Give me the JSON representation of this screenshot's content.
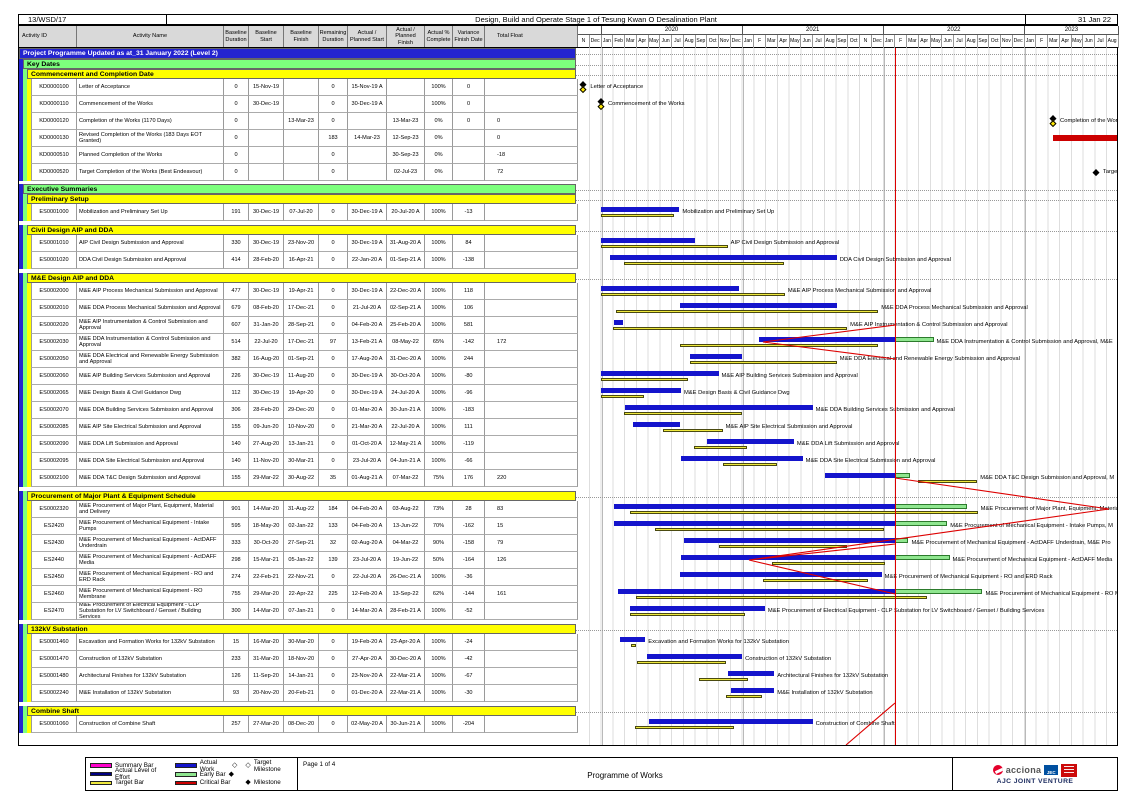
{
  "header": {
    "doc_ref": "13/WSD/17",
    "title": "Design, Build and Operate Stage 1 of Tesung Kwan O Desalination Plant",
    "date": "31 Jan 22"
  },
  "columns": [
    "Activity ID",
    "Activity Name",
    "Baseline Duration",
    "Baseline Start",
    "Baseline Finish",
    "Remaining Duration",
    "Actual / Planned Start",
    "Actual / Planned Finish",
    "Actual % Complete",
    "Variance Finish Date",
    "Total Float"
  ],
  "timeline": {
    "years": [
      {
        "label": "",
        "months": 2
      },
      {
        "label": "2020",
        "months": 12
      },
      {
        "label": "2021",
        "months": 12
      },
      {
        "label": "2022",
        "months": 12
      },
      {
        "label": "2023",
        "months": 8
      }
    ],
    "months": [
      "N",
      "Dec",
      "Jan",
      "Feb",
      "Mar",
      "Apr",
      "May",
      "Jun",
      "Jul",
      "Aug",
      "Sep",
      "Oct",
      "Nov",
      "Dec",
      "Jan",
      "F",
      "Mar",
      "Apr",
      "May",
      "Jun",
      "Jul",
      "Aug",
      "Sep",
      "Oct",
      "N",
      "Dec",
      "Jan",
      "F",
      "Mar",
      "Apr",
      "May",
      "Jun",
      "Jul",
      "Aug",
      "Sep",
      "Oct",
      "Nov",
      "Dec",
      "Jan",
      "F",
      "Mar",
      "Apr",
      "May",
      "Jun",
      "Jul",
      "Aug"
    ]
  },
  "data_date": "31-Jan-22",
  "rows": [
    [
      "band1",
      "Project Programme Updated as at_31 January 2022 (Level 2)"
    ],
    [
      "band2",
      "Key Dates"
    ],
    [
      "band3",
      "Commencement and Completion Date"
    ],
    [
      "task",
      "KD0000100",
      "Letter of Acceptance",
      "0",
      "15-Nov-19",
      "",
      "0",
      "15-Nov-19 A",
      "",
      "100%",
      "0",
      "",
      ""
    ],
    [
      "task",
      "KD0000110",
      "Commencement of the Works",
      "0",
      "30-Dec-19",
      "",
      "0",
      "30-Dec-19 A",
      "",
      "100%",
      "0",
      "",
      ""
    ],
    [
      "task",
      "KD0000120",
      "Completion of the Works (1170 Days)",
      "0",
      "",
      "13-Mar-23",
      "0",
      "",
      "13-Mar-23",
      "0%",
      "0",
      "0",
      ""
    ],
    [
      "task",
      "KD0000130",
      "Revised Completion of the Works (183 Days EOT Granted)",
      "0",
      "",
      "",
      "183",
      "14-Mar-23",
      "12-Sep-23",
      "0%",
      "",
      "0",
      "crit"
    ],
    [
      "task",
      "KD0000510",
      "Planned Completion of the Works",
      "0",
      "",
      "",
      "0",
      "",
      "30-Sep-23",
      "0%",
      "",
      "-18",
      ""
    ],
    [
      "task",
      "KD0000520",
      "Target Completion of the Works (Best Endeavour)",
      "0",
      "",
      "",
      "0",
      "",
      "02-Jul-23",
      "0%",
      "",
      "72",
      "single"
    ],
    [
      "band2",
      "Executive Summaries"
    ],
    [
      "band3",
      "Preliminary Setup"
    ],
    [
      "task",
      "ES0001000",
      "Mobilization and Preliminary Set Up",
      "191",
      "30-Dec-19",
      "07-Jul-20",
      "0",
      "30-Dec-19 A",
      "20-Jul-20 A",
      "100%",
      "-13",
      "",
      ""
    ],
    [
      "band3",
      "Civil Design AIP and DDA"
    ],
    [
      "task",
      "ES0001010",
      "AIP Civil Design Submission and Approval",
      "330",
      "30-Dec-19",
      "23-Nov-20",
      "0",
      "30-Dec-19 A",
      "31-Aug-20 A",
      "100%",
      "84",
      "",
      ""
    ],
    [
      "task",
      "ES0001020",
      "DDA Civil Design Submission and Approval",
      "414",
      "28-Feb-20",
      "16-Apr-21",
      "0",
      "22-Jan-20 A",
      "01-Sep-21 A",
      "100%",
      "-138",
      "",
      ""
    ],
    [
      "band3",
      "M&E Design AIP and DDA"
    ],
    [
      "task",
      "ES0002000",
      "M&E AIP Process Mechanical Submission and Approval",
      "477",
      "30-Dec-19",
      "19-Apr-21",
      "0",
      "30-Dec-19 A",
      "22-Dec-20 A",
      "100%",
      "118",
      "",
      ""
    ],
    [
      "task",
      "ES0002010",
      "M&E DDA Process Mechanical Submission and Approval",
      "679",
      "08-Feb-20",
      "17-Dec-21",
      "0",
      "21-Jul-20 A",
      "02-Sep-21 A",
      "100%",
      "106",
      "",
      ""
    ],
    [
      "task",
      "ES0002020",
      "M&E AIP Instrumentation & Control Submission and Approval",
      "607",
      "31-Jan-20",
      "28-Sep-21",
      "0",
      "04-Feb-20 A",
      "25-Feb-20 A",
      "100%",
      "581",
      "",
      ""
    ],
    [
      "task",
      "ES0002030",
      "M&E DDA Instrumentation & Control Submission and Approval",
      "514",
      "22-Jul-20",
      "17-Dec-21",
      "97",
      "13-Feb-21 A",
      "08-May-22",
      "65%",
      "-142",
      "172",
      "",
      ", M&E"
    ],
    [
      "task",
      "ES0002050",
      "M&E DDA Electrical and Renewable Energy Submission and Approval",
      "382",
      "16-Aug-20",
      "01-Sep-21",
      "0",
      "17-Aug-20 A",
      "31-Dec-20 A",
      "100%",
      "244",
      "",
      ""
    ],
    [
      "task",
      "ES0002060",
      "M&E AIP Building Services Submission and Approval",
      "226",
      "30-Dec-19",
      "11-Aug-20",
      "0",
      "30-Dec-19 A",
      "30-Oct-20 A",
      "100%",
      "-80",
      "",
      ""
    ],
    [
      "task",
      "ES0002065",
      "M&E Design Basis & Civil Guidance Dwg",
      "112",
      "30-Dec-19",
      "19-Apr-20",
      "0",
      "30-Dec-19 A",
      "24-Jul-20 A",
      "100%",
      "-96",
      "",
      ""
    ],
    [
      "task",
      "ES0002070",
      "M&E DDA Building Services Submission and Approval",
      "306",
      "28-Feb-20",
      "29-Dec-20",
      "0",
      "01-Mar-20 A",
      "30-Jun-21 A",
      "100%",
      "-183",
      "",
      ""
    ],
    [
      "task",
      "ES0002085",
      "M&E AIP Site Electrical Submission and Approval",
      "155",
      "09-Jun-20",
      "10-Nov-20",
      "0",
      "21-Mar-20 A",
      "22-Jul-20 A",
      "100%",
      "111",
      "",
      ""
    ],
    [
      "task",
      "ES0002090",
      "M&E DDA Lift Submission and Approval",
      "140",
      "27-Aug-20",
      "13-Jan-21",
      "0",
      "01-Oct-20 A",
      "12-May-21 A",
      "100%",
      "-119",
      "",
      ""
    ],
    [
      "task",
      "ES0002095",
      "M&E DDA Site Electrical Submission and Approval",
      "140",
      "11-Nov-20",
      "30-Mar-21",
      "0",
      "23-Jul-20 A",
      "04-Jun-21 A",
      "100%",
      "-66",
      "",
      ""
    ],
    [
      "task",
      "ES0002100",
      "M&E DDA T&C Design Submission and Approval",
      "155",
      "29-Mar-22",
      "30-Aug-22",
      "35",
      "01-Aug-21 A",
      "07-Mar-22",
      "75%",
      "176",
      "220",
      "",
      ", M"
    ],
    [
      "band3",
      "Procurement of Major Plant & Equipment Schedule"
    ],
    [
      "task",
      "ES0002320",
      "M&E Procurement of Major Plant, Equipment, Material and Delivery",
      "901",
      "14-Mar-20",
      "31-Aug-22",
      "184",
      "04-Feb-20 A",
      "03-Aug-22",
      "73%",
      "28",
      "83",
      "",
      ""
    ],
    [
      "task",
      "ES2420",
      "M&E Procurement of Mechanical Equipment - Intake Pumps",
      "595",
      "18-May-20",
      "02-Jan-22",
      "133",
      "04-Feb-20 A",
      "13-Jun-22",
      "70%",
      "-162",
      "15",
      "",
      ", M"
    ],
    [
      "task",
      "ES2430",
      "M&E Procurement of Mechanical Equipment - ActDAFF Underdrain",
      "333",
      "30-Oct-20",
      "27-Sep-21",
      "32",
      "02-Aug-20 A",
      "04-Mar-22",
      "90%",
      "-158",
      "79",
      "",
      ", M&E Pro"
    ],
    [
      "task",
      "ES2440",
      "M&E Procurement of Mechanical Equipment - ActDAFF Media",
      "298",
      "15-Mar-21",
      "05-Jan-22",
      "139",
      "23-Jul-20 A",
      "19-Jun-22",
      "50%",
      "-164",
      "126",
      "",
      ""
    ],
    [
      "task",
      "ES2450",
      "M&E Procurement of Mechanical Equipment - RO and ERD Rack",
      "274",
      "22-Feb-21",
      "22-Nov-21",
      "0",
      "22-Jul-20 A",
      "26-Dec-21 A",
      "100%",
      "-36",
      "",
      "",
      ""
    ],
    [
      "task",
      "ES2460",
      "M&E Procurement of Mechanical Equipment - RO Membrane",
      "755",
      "29-Mar-20",
      "22-Apr-22",
      "225",
      "12-Feb-20 A",
      "13-Sep-22",
      "62%",
      "-144",
      "161",
      "",
      ""
    ],
    [
      "task",
      "ES2470",
      "M&E Procurement of Electrical Equipment - CLP Substation for LV Switchboard / Genset / Building Services",
      "300",
      "14-Mar-20",
      "07-Jan-21",
      "0",
      "14-Mar-20 A",
      "28-Feb-21 A",
      "100%",
      "-52",
      "",
      "",
      ""
    ],
    [
      "band3",
      "132kV Substation"
    ],
    [
      "task",
      "ES0001460",
      "Excavation and Formation Works for 132kV Substation",
      "15",
      "16-Mar-20",
      "30-Mar-20",
      "0",
      "19-Feb-20 A",
      "23-Apr-20 A",
      "100%",
      "-24",
      "",
      "",
      ""
    ],
    [
      "task",
      "ES0001470",
      "Construction of 132kV Substation",
      "233",
      "31-Mar-20",
      "18-Nov-20",
      "0",
      "27-Apr-20 A",
      "30-Dec-20 A",
      "100%",
      "-42",
      "",
      "",
      ""
    ],
    [
      "task",
      "ES0001480",
      "Architectural Finishes for 132kV Substation",
      "126",
      "11-Sep-20",
      "14-Jan-21",
      "0",
      "23-Nov-20 A",
      "22-Mar-21 A",
      "100%",
      "-67",
      "",
      "",
      ""
    ],
    [
      "task",
      "ES0002240",
      "M&E Installation of 132kV Substation",
      "93",
      "20-Nov-20",
      "20-Feb-21",
      "0",
      "01-Dec-20 A",
      "22-Mar-21 A",
      "100%",
      "-30",
      "",
      "",
      ""
    ],
    [
      "band3",
      "Combine Shaft"
    ],
    [
      "task",
      "ES0001060",
      "Construction of Combine Shaft",
      "257",
      "27-Mar-20",
      "08-Dec-20",
      "0",
      "02-May-20 A",
      "30-Jun-21 A",
      "100%",
      "-204",
      "",
      "",
      ""
    ]
  ],
  "gantt": {
    "colors": {
      "actual": "#1414cc",
      "target": "#efe93d",
      "early": "#8fe68f",
      "critical": "#cc0000",
      "summary": "#ff00cc",
      "level_of_effort": "#000080",
      "data_date_line": "#dd0000",
      "band1": "#2424d0",
      "band2": "#7dff7d",
      "band3": "#ffff00"
    },
    "rel_lines": [
      [
        [
          317,
          277
        ],
        [
          185,
          294
        ],
        [
          317,
          311
        ]
      ],
      [
        [
          317,
          430
        ],
        [
          531,
          461
        ]
      ],
      [
        [
          531,
          461
        ],
        [
          171,
          512
        ],
        [
          317,
          496
        ]
      ],
      [
        [
          171,
          512
        ],
        [
          317,
          546
        ]
      ],
      [
        [
          317,
          655
        ],
        [
          268,
          697
        ]
      ]
    ]
  },
  "legend": {
    "col1": [
      {
        "swatch": "#ff00cc",
        "label": "Summary Bar"
      },
      {
        "swatch": "#000080",
        "label": "Actual Level of Effort"
      },
      {
        "swatch": "#efe93d",
        "label": "Target Bar"
      }
    ],
    "col2": [
      {
        "swatch": "#1414cc",
        "label": "Actual Work",
        "glyph": "◇"
      },
      {
        "swatch": "#8fe68f",
        "label": "Early Bar",
        "glyph": "◆"
      },
      {
        "swatch": "#cc0000",
        "label": "Critical Bar",
        "glyph": ""
      }
    ],
    "col3": [
      {
        "glyph": "◇",
        "label": "Target Milestone"
      },
      {
        "glyph": "◆",
        "label": "Milestone"
      }
    ]
  },
  "footer": {
    "page_label": "Page 1 of 4",
    "center_label": "Programme of Works",
    "logo_acciona": "acciona",
    "logo_jec": "JEC",
    "jv_label": "AJC JOINT VENTURE"
  }
}
